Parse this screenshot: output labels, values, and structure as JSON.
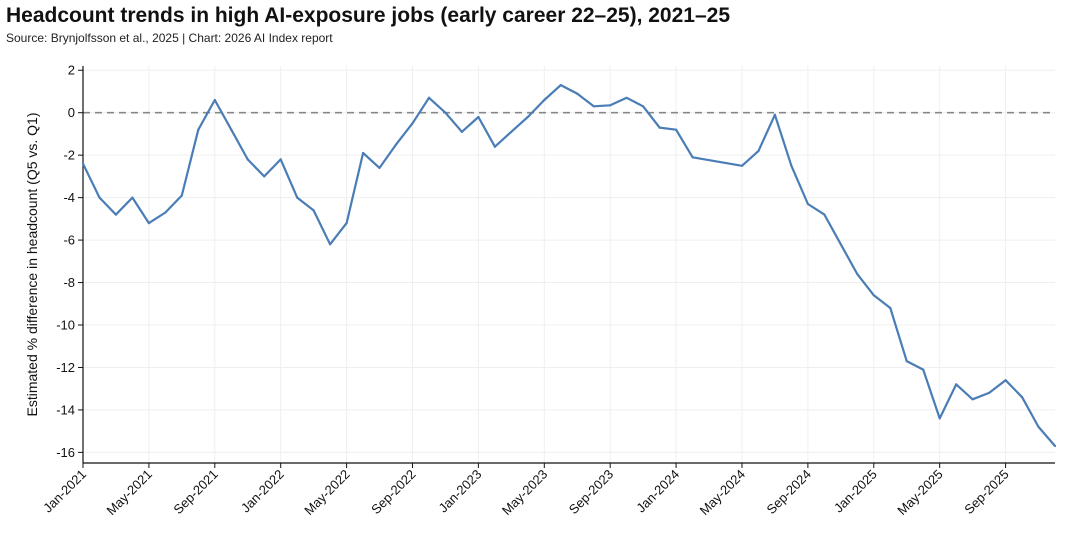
{
  "chart_data": {
    "type": "line",
    "title": "Headcount trends in high AI-exposure jobs (early career 22–25), 2021–25",
    "subtitle": "Source: Brynjolfsson et al., 2025 | Chart: 2026 AI Index report",
    "xlabel": "",
    "ylabel": "Estimated % difference in headcount (Q5 vs. Q1)",
    "ylim": [
      -16.5,
      2.2
    ],
    "yticks": [
      2,
      0,
      -2,
      -4,
      -6,
      -8,
      -10,
      -12,
      -14,
      -16
    ],
    "grid": true,
    "reference_line": {
      "y": 0,
      "style": "dashed",
      "color": "#888888"
    },
    "line_color": "#4a7db5",
    "x_ticks": [
      "Jan-2021",
      "May-2021",
      "Sep-2021",
      "Jan-2022",
      "May-2022",
      "Sep-2022",
      "Jan-2023",
      "May-2023",
      "Sep-2023",
      "Jan-2024",
      "May-2024",
      "Sep-2024",
      "Jan-2025",
      "May-2025",
      "Sep-2025"
    ],
    "x": [
      "2021-01",
      "2021-02",
      "2021-03",
      "2021-04",
      "2021-05",
      "2021-06",
      "2021-07",
      "2021-08",
      "2021-09",
      "2021-10",
      "2021-11",
      "2021-12",
      "2022-01",
      "2022-02",
      "2022-03",
      "2022-04",
      "2022-05",
      "2022-06",
      "2022-07",
      "2022-08",
      "2022-09",
      "2022-10",
      "2022-11",
      "2022-12",
      "2023-01",
      "2023-02",
      "2023-03",
      "2023-04",
      "2023-05",
      "2023-06",
      "2023-07",
      "2023-08",
      "2023-09",
      "2023-10",
      "2023-11",
      "2023-12",
      "2024-01",
      "2024-02",
      "2024-05",
      "2024-06",
      "2024-07",
      "2024-08",
      "2024-09",
      "2024-10",
      "2024-11",
      "2024-12",
      "2025-01",
      "2025-02",
      "2025-03",
      "2025-04",
      "2025-05",
      "2025-06",
      "2025-07",
      "2025-08",
      "2025-09",
      "2025-10",
      "2025-11",
      "2025-12"
    ],
    "series": [
      {
        "values": [
          -2.4,
          -4.0,
          -4.8,
          -4.0,
          -5.2,
          -4.7,
          -3.9,
          -0.8,
          0.6,
          -0.8,
          -2.2,
          -3.0,
          -2.2,
          -4.0,
          -4.6,
          -6.2,
          -5.2,
          -1.9,
          -2.6,
          -1.5,
          -0.5,
          0.7,
          0.0,
          -0.9,
          -0.2,
          -1.6,
          -0.9,
          -0.2,
          0.6,
          1.3,
          0.9,
          0.3,
          0.35,
          0.7,
          0.3,
          -0.7,
          -0.8,
          -2.1,
          -2.5,
          -1.8,
          -0.1,
          -2.5,
          -4.3,
          -4.8,
          -6.2,
          -7.6,
          -8.6,
          -9.2,
          -11.7,
          -12.1,
          -14.4,
          -12.8,
          -13.5,
          -13.2,
          -12.6,
          -13.4,
          -14.8,
          -15.7
        ]
      }
    ]
  }
}
